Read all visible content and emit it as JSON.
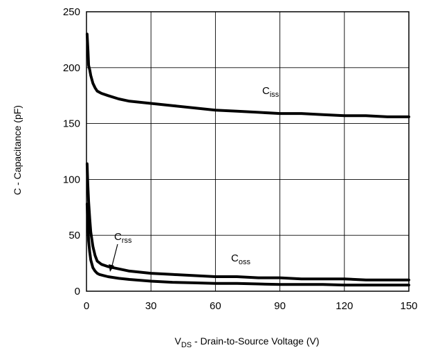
{
  "chart_data": {
    "type": "line",
    "xlabel": {
      "main": "V",
      "sub": "DS",
      "rest": " - Drain-to-Source Voltage (V)"
    },
    "ylabel": "C - Capacitance (pF)",
    "xlim": [
      0,
      150
    ],
    "ylim": [
      0,
      250
    ],
    "xticks": [
      0,
      30,
      60,
      90,
      120,
      150
    ],
    "yticks": [
      0,
      50,
      100,
      150,
      200,
      250
    ],
    "grid": true,
    "line_color": "#000000",
    "series": [
      {
        "name": "Ciss",
        "label_main": "C",
        "label_sub": "iss",
        "x": [
          0.3,
          0.7,
          1,
          1.5,
          2,
          3,
          4,
          5,
          7,
          10,
          15,
          20,
          30,
          40,
          50,
          60,
          70,
          80,
          90,
          100,
          110,
          120,
          130,
          140,
          150
        ],
        "y": [
          230,
          215,
          202,
          198,
          193,
          186,
          182,
          179,
          177,
          175,
          172,
          170,
          168,
          166,
          164,
          162,
          161,
          160,
          159,
          159,
          158,
          157,
          157,
          156,
          156
        ]
      },
      {
        "name": "Crss",
        "label_main": "C",
        "label_sub": "rss",
        "x": [
          0.3,
          0.6,
          1,
          1.5,
          2,
          3,
          4,
          5,
          6,
          8,
          10,
          15,
          20,
          30,
          40,
          50,
          60,
          70,
          80,
          90,
          100,
          110,
          120,
          130,
          140,
          150
        ],
        "y": [
          78,
          62,
          45,
          35,
          28,
          21,
          18,
          16,
          15,
          14,
          13,
          11.5,
          10.5,
          9,
          8,
          7.5,
          7,
          7,
          6.5,
          6,
          6,
          6,
          5.5,
          5.5,
          5.5,
          5.5
        ]
      },
      {
        "name": "Coss",
        "label_main": "C",
        "label_sub": "oss",
        "x": [
          0.3,
          0.6,
          1,
          1.5,
          2,
          3,
          4,
          5,
          7,
          10,
          15,
          20,
          30,
          40,
          50,
          60,
          70,
          80,
          90,
          100,
          110,
          120,
          130,
          140,
          150
        ],
        "y": [
          114,
          96,
          80,
          65,
          53,
          40,
          32,
          27,
          24,
          22,
          20,
          18,
          16,
          15,
          14,
          13,
          13,
          12,
          12,
          11,
          11,
          11,
          10,
          10,
          10
        ]
      }
    ]
  }
}
